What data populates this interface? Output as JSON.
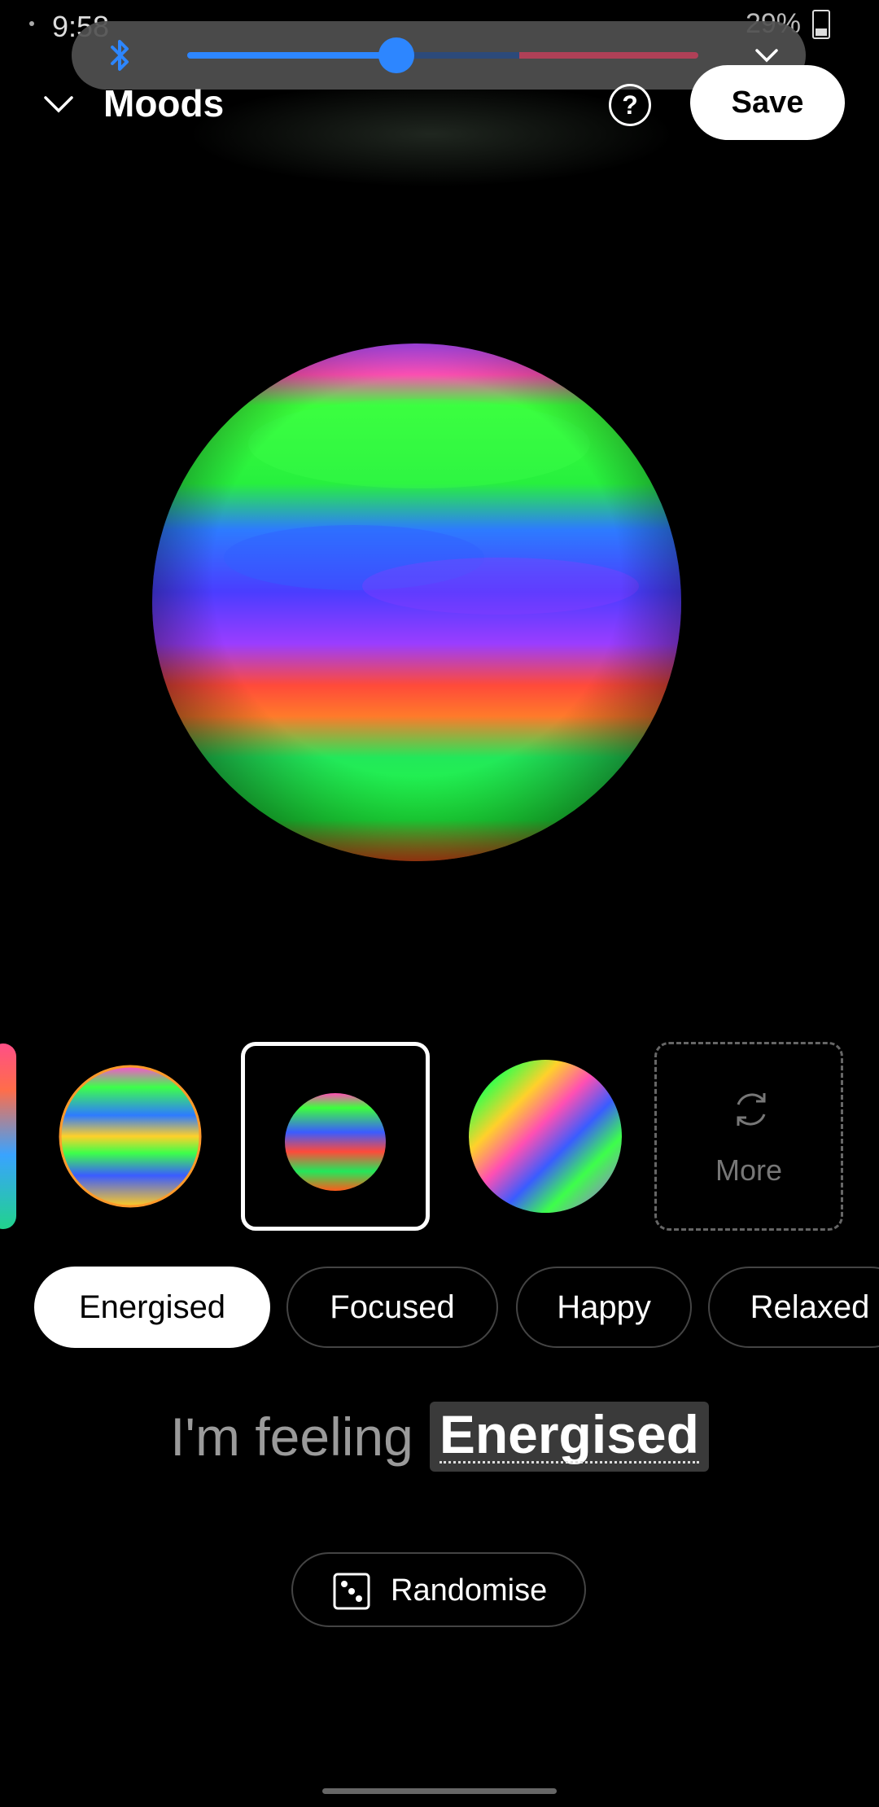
{
  "status_bar": {
    "time": "9:58",
    "battery": "29%"
  },
  "volume": {
    "level": 0.41,
    "expand_icon": "chevron-down-icon",
    "bluetooth_icon": "bluetooth-icon"
  },
  "header": {
    "title": "Moods",
    "help_label": "?",
    "save_label": "Save"
  },
  "thumbnails": {
    "more_label": "More"
  },
  "chips": [
    "Energised",
    "Focused",
    "Happy",
    "Relaxed"
  ],
  "feeling": {
    "prefix": "I'm feeling",
    "mood": "Energised"
  },
  "randomise_label": "Randomise",
  "colors": {
    "accent": "#2d86ff",
    "background": "#000000"
  }
}
